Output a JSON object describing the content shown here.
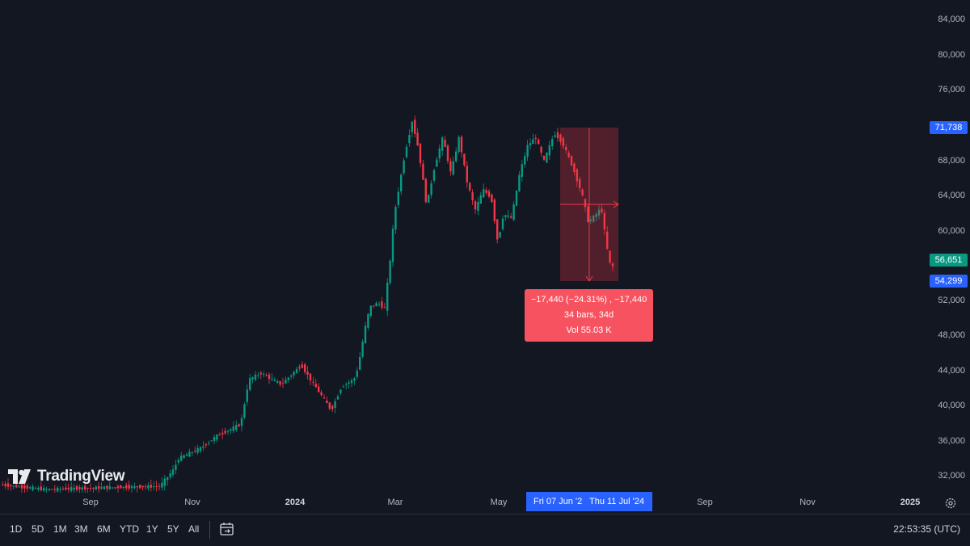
{
  "chart": {
    "y_axis_ticks": [
      "84,000",
      "80,000",
      "76,000",
      "68,000",
      "64,000",
      "60,000",
      "52,000",
      "48,000",
      "44,000",
      "40,000",
      "36,000",
      "32,000"
    ],
    "price_badges": [
      {
        "label": "71,738",
        "color": "#2962ff"
      },
      {
        "label": "56,651",
        "color": "#089981"
      },
      {
        "label": "54,299",
        "color": "#2962ff"
      }
    ],
    "x_axis_ticks": [
      {
        "label": "Sep",
        "bold": false
      },
      {
        "label": "Nov",
        "bold": false
      },
      {
        "label": "2024",
        "bold": true
      },
      {
        "label": "Mar",
        "bold": false
      },
      {
        "label": "May",
        "bold": false
      },
      {
        "label": "Sep",
        "bold": false
      },
      {
        "label": "Nov",
        "bold": false
      },
      {
        "label": "2025",
        "bold": true
      }
    ],
    "range_start_label": "Fri 07 Jun '2",
    "range_end_label": "Thu 11 Jul '24",
    "measure": {
      "line1": "−17,440 (−24.31%) , −17,440",
      "line2": "34 bars, 34d",
      "line3": "Vol 55.03 K"
    },
    "up_color": "#089981",
    "down_color": "#f23645"
  },
  "logo": {
    "text": "TradingView"
  },
  "bottom_bar": {
    "timeframes": [
      "1D",
      "5D",
      "1M",
      "3M",
      "6M",
      "YTD",
      "1Y",
      "5Y",
      "All"
    ],
    "clock": "22:53:35 (UTC)"
  },
  "icons": {
    "date_range": "calendar-range-icon",
    "settings": "gear-icon"
  }
}
